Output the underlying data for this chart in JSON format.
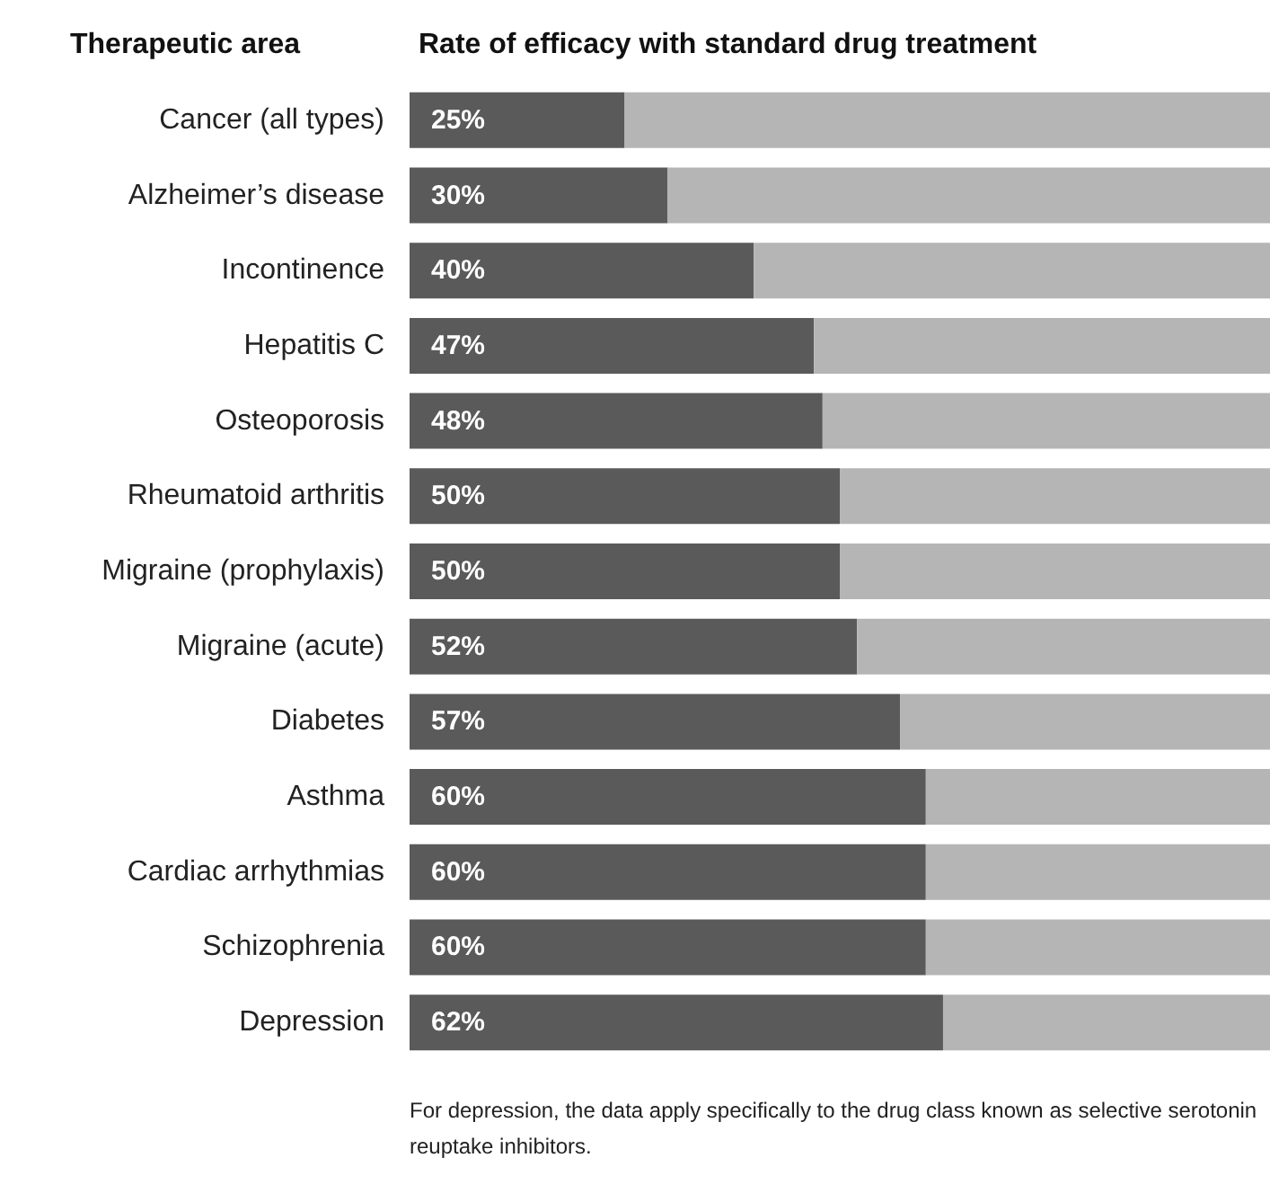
{
  "chart_data": {
    "type": "bar",
    "orientation": "horizontal",
    "stacked": true,
    "title": "Rate of efficacy with standard drug treatment",
    "ylabel": "Therapeutic area",
    "categories": [
      "Cancer (all types)",
      "Alzheimer’s disease",
      "Incontinence",
      "Hepatitis C",
      "Osteoporosis",
      "Rheumatoid arthritis",
      "Migraine (prophylaxis)",
      "Migraine (acute)",
      "Diabetes",
      "Asthma",
      "Cardiac arrhythmias",
      "Schizophrenia",
      "Depression"
    ],
    "series": [
      {
        "color": "#5a5a5a",
        "values": [
          25,
          30,
          40,
          47,
          48,
          50,
          50,
          52,
          57,
          60,
          60,
          60,
          62
        ],
        "value_labels": [
          "25%",
          "30%",
          "40%",
          "47%",
          "48%",
          "50%",
          "50%",
          "52%",
          "57%",
          "60%",
          "60%",
          "60%",
          "62%"
        ]
      },
      {
        "color": "#b5b5b5",
        "values": [
          75,
          70,
          60,
          53,
          52,
          50,
          50,
          48,
          43,
          40,
          40,
          40,
          38
        ]
      }
    ],
    "xlim": [
      0,
      100
    ],
    "tick_labels": "y",
    "annotations": [
      "For depression, the data apply specifically to the drug class known as selective serotonin reuptake inhibitors."
    ]
  }
}
